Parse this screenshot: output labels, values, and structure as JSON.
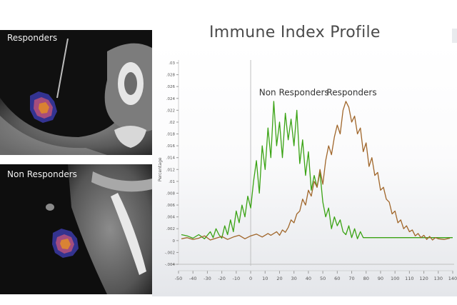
{
  "panels": {
    "top_label": "Responders",
    "bottom_label": "Non Responders"
  },
  "colors": {
    "non_responders": "#3aa314",
    "responders": "#a0662a",
    "background_top": "#ffffff",
    "background_bottom": "#e7e9ec"
  },
  "chart_data": {
    "type": "line",
    "title": "Immune Index Profile",
    "xlabel": "",
    "ylabel": "Percentage",
    "xlim": [
      -50,
      140
    ],
    "ylim": [
      -0.004,
      0.03
    ],
    "x_ticks": [
      -50,
      -40,
      -30,
      -20,
      -10,
      0,
      10,
      20,
      30,
      40,
      50,
      60,
      70,
      80,
      90,
      100,
      110,
      120,
      130,
      140
    ],
    "y_ticks": [
      -0.004,
      -0.002,
      0,
      0.002,
      0.004,
      0.006,
      0.008,
      0.01,
      0.012,
      0.014,
      0.016,
      0.018,
      0.02,
      0.022,
      0.024,
      0.026,
      0.028,
      0.03
    ],
    "grid": false,
    "annotations": [
      {
        "text": "Non Responders",
        "x": 30,
        "y": 0.0245
      },
      {
        "text": "Responders",
        "x": 70,
        "y": 0.0245
      }
    ],
    "series": [
      {
        "name": "Non Responders",
        "color": "#3aa314",
        "x": [
          -48,
          -44,
          -40,
          -36,
          -32,
          -28,
          -26,
          -24,
          -22,
          -20,
          -18,
          -16,
          -14,
          -12,
          -10,
          -8,
          -6,
          -4,
          -2,
          0,
          2,
          4,
          6,
          8,
          10,
          12,
          14,
          16,
          18,
          20,
          22,
          24,
          26,
          28,
          30,
          32,
          34,
          36,
          38,
          40,
          42,
          44,
          46,
          48,
          50,
          52,
          54,
          56,
          58,
          60,
          62,
          64,
          66,
          68,
          70,
          72,
          74,
          76,
          78,
          80,
          82,
          90,
          100,
          110,
          120,
          130,
          140
        ],
        "y": [
          0.001,
          0.0008,
          0.0004,
          0.001,
          0.0003,
          0.0015,
          0.0005,
          0.002,
          0.001,
          0.0004,
          0.0025,
          0.001,
          0.0035,
          0.0015,
          0.005,
          0.003,
          0.006,
          0.004,
          0.0075,
          0.0055,
          0.01,
          0.0135,
          0.008,
          0.016,
          0.012,
          0.019,
          0.014,
          0.0235,
          0.016,
          0.02,
          0.014,
          0.0215,
          0.017,
          0.0205,
          0.016,
          0.022,
          0.013,
          0.017,
          0.011,
          0.015,
          0.0085,
          0.011,
          0.009,
          0.0115,
          0.0065,
          0.004,
          0.0055,
          0.002,
          0.004,
          0.0025,
          0.0035,
          0.0015,
          0.001,
          0.0025,
          0.0005,
          0.002,
          0.0003,
          0.0015,
          0.0005,
          0.0005,
          0.0005,
          0.0005,
          0.0005,
          0.0005,
          0.0005,
          0.0005,
          0.0005
        ]
      },
      {
        "name": "Responders",
        "color": "#a0662a",
        "x": [
          -48,
          -44,
          -40,
          -36,
          -32,
          -28,
          -24,
          -20,
          -16,
          -12,
          -8,
          -4,
          0,
          4,
          8,
          12,
          14,
          18,
          20,
          22,
          24,
          26,
          28,
          30,
          32,
          34,
          36,
          38,
          40,
          42,
          44,
          46,
          48,
          50,
          52,
          54,
          56,
          58,
          60,
          62,
          64,
          66,
          68,
          70,
          72,
          74,
          76,
          78,
          80,
          82,
          84,
          86,
          88,
          90,
          92,
          94,
          96,
          98,
          100,
          102,
          104,
          106,
          108,
          110,
          112,
          114,
          116,
          118,
          120,
          122,
          124,
          126,
          128,
          130,
          134,
          138
        ],
        "y": [
          0.0003,
          0.0005,
          0.0002,
          0.0004,
          0.0008,
          0.0001,
          0.0004,
          0.0007,
          0.0002,
          0.0006,
          0.0009,
          0.0003,
          0.0008,
          0.0011,
          0.0006,
          0.0012,
          0.0009,
          0.0015,
          0.0009,
          0.0018,
          0.0014,
          0.0022,
          0.0035,
          0.003,
          0.0045,
          0.005,
          0.007,
          0.006,
          0.0085,
          0.0075,
          0.01,
          0.009,
          0.012,
          0.0095,
          0.0135,
          0.016,
          0.0145,
          0.0175,
          0.0195,
          0.018,
          0.022,
          0.0235,
          0.0225,
          0.02,
          0.021,
          0.018,
          0.019,
          0.015,
          0.0165,
          0.0125,
          0.014,
          0.011,
          0.0115,
          0.0085,
          0.009,
          0.007,
          0.0065,
          0.0045,
          0.005,
          0.003,
          0.0035,
          0.002,
          0.0025,
          0.0015,
          0.0018,
          0.0008,
          0.0012,
          0.0005,
          0.0009,
          0.0002,
          0.0007,
          0.0001,
          0.0005,
          0.0003,
          0.0002,
          0.0004
        ]
      }
    ]
  }
}
